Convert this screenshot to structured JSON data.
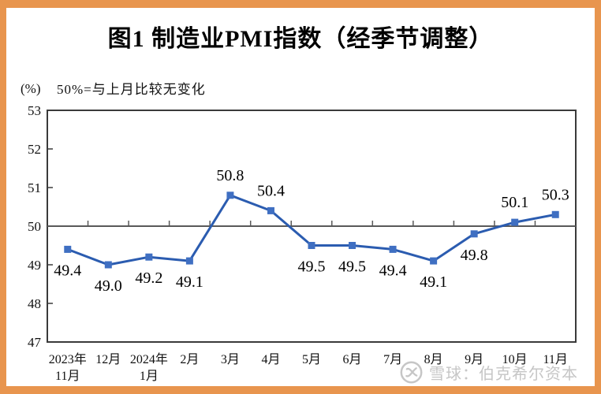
{
  "frame": {
    "border_color": "#E8954E",
    "paper_color": "#FFFFFF"
  },
  "title": "图1  制造业PMI指数（经季节调整）",
  "axis_note": {
    "unit": "(%)",
    "note": "50%=与上月比较无变化"
  },
  "watermark": {
    "text": "雪球：伯克希尔资本",
    "logo": "xueqiu-circle-logo",
    "color": "#C6C6C6"
  },
  "chart_data": {
    "type": "line",
    "title": "图1 制造业PMI指数（经季节调整）",
    "xlabel": "",
    "ylabel": "(%)",
    "ylim": [
      47,
      53
    ],
    "y_ticks": [
      53,
      52,
      51,
      50,
      49,
      48,
      47
    ],
    "grid": false,
    "legend": false,
    "axis_color": "#3A3A3A",
    "reference_line": {
      "value": 50,
      "label": "50%=与上月比较无变化",
      "color": "#595959"
    },
    "categories": [
      "2023年11月",
      "12月",
      "2024年1月",
      "2月",
      "3月",
      "4月",
      "5月",
      "6月",
      "7月",
      "8月",
      "9月",
      "10月",
      "11月"
    ],
    "category_labels": [
      [
        "2023年",
        "11月"
      ],
      [
        "12月"
      ],
      [
        "2024年",
        "1月"
      ],
      [
        "2月"
      ],
      [
        "3月"
      ],
      [
        "4月"
      ],
      [
        "5月"
      ],
      [
        "6月"
      ],
      [
        "7月"
      ],
      [
        "8月"
      ],
      [
        "9月"
      ],
      [
        "10月"
      ],
      [
        "11月"
      ]
    ],
    "series": [
      {
        "name": "制造业PMI指数（经季节调整）",
        "values": [
          49.4,
          49.0,
          49.2,
          49.1,
          50.8,
          50.4,
          49.5,
          49.5,
          49.4,
          49.1,
          49.8,
          50.1,
          50.3
        ],
        "point_labels": [
          "49.4",
          "49.0",
          "49.2",
          "49.1",
          "50.8",
          "50.4",
          "49.5",
          "49.5",
          "49.4",
          "49.1",
          "49.8",
          "50.1",
          "50.3"
        ],
        "label_positions": [
          "below",
          "below",
          "below",
          "below",
          "above",
          "above",
          "below",
          "below",
          "below",
          "below",
          "below",
          "above",
          "above"
        ],
        "line_color": "#2B5CB0",
        "marker_color": "#3F6FC2",
        "marker": "square"
      }
    ]
  }
}
